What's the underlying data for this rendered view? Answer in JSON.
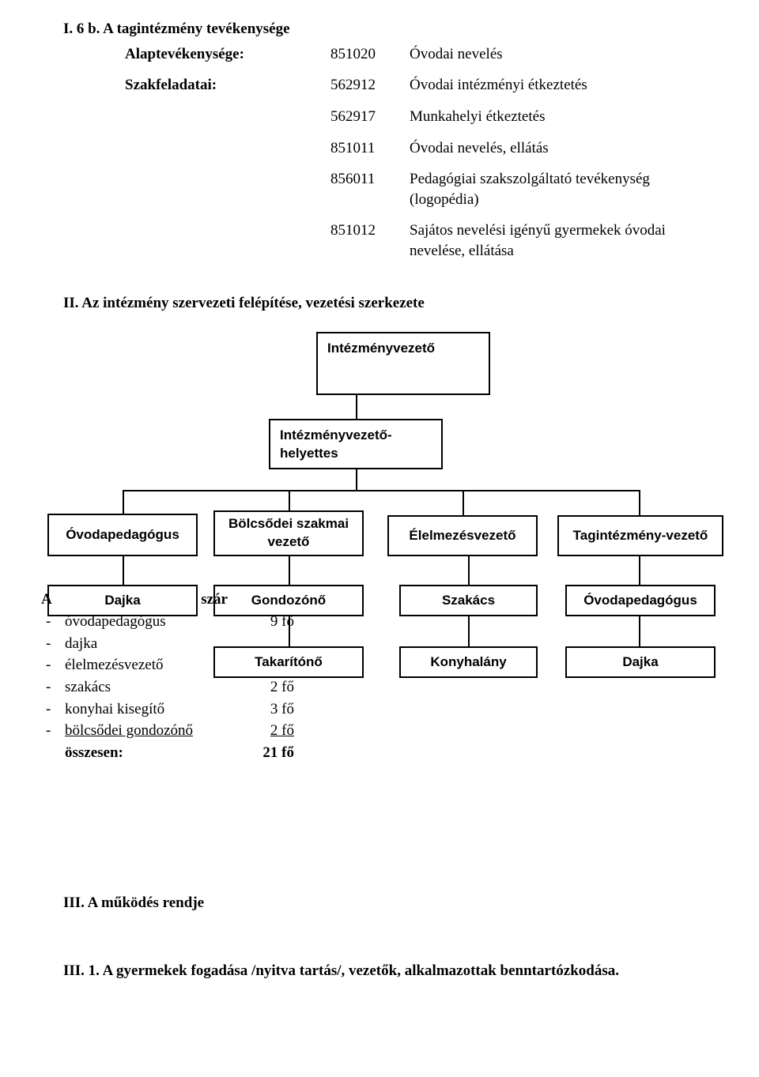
{
  "section1": {
    "heading": "I. 6 b.  A tagintézmény tevékenysége",
    "base_label": "Alaptevékenysége:",
    "base_code": "851020",
    "base_value": "Óvodai nevelés",
    "tasks_label": "Szakfeladatai:",
    "tasks": [
      {
        "code": "562912",
        "value": "Óvodai intézményi étkeztetés"
      },
      {
        "code": "562917",
        "value": "Munkahelyi étkeztetés"
      },
      {
        "code": "851011",
        "value": "Óvodai nevelés, ellátás"
      },
      {
        "code": "856011",
        "value": "Pedagógiai szakszolgáltató tevékenység (logopédia)"
      },
      {
        "code": "851012",
        "value": "Sajátos nevelési igényű gyermekek óvodai nevelése, ellátása"
      }
    ]
  },
  "section2": {
    "title": "II.    Az intézmény szervezeti felépítése, vezetési szerkezete",
    "nodes": {
      "root": "Intézményvezető",
      "deputy": "Intézményvezető-helyettes",
      "row1": [
        "Óvodapedagógus",
        "Bölcsődei szakmai vezető",
        "Élelmezésvezető",
        "Tagintézmény-vezető"
      ],
      "row2": [
        "Dajka",
        "Gondozónő",
        "Szakács",
        "Óvodapedagógus"
      ],
      "row3": [
        "",
        "Takarítónő",
        "Konyhalány",
        "Dajka"
      ]
    },
    "box_border_color": "#000000",
    "box_font": "Arial"
  },
  "staff": {
    "title_prefix": "A",
    "title_suffix": "szár",
    "rows": [
      {
        "bullet": "-",
        "name": "óvodapedagógus",
        "value": "9 fő"
      },
      {
        "bullet": "-",
        "name": "dajka",
        "value": ""
      },
      {
        "bullet": "-",
        "name": "élelmezésvezető",
        "value": ""
      },
      {
        "bullet": "-",
        "name": "szakács",
        "value": "2 fő"
      },
      {
        "bullet": "-",
        "name": "konyhai kisegítő",
        "value": "3 fő"
      },
      {
        "bullet": "-",
        "name": "bölcsődei gondozónő",
        "value": "2 fő",
        "underline": true
      },
      {
        "bullet": "",
        "name": "összesen:",
        "value": "21 fő",
        "total": true
      }
    ]
  },
  "section3": {
    "title": "III.    A működés rendje",
    "sub": "III. 1.   A gyermekek fogadása /nyitva tartás/, vezetők, alkalmazottak benntartózkodása."
  }
}
